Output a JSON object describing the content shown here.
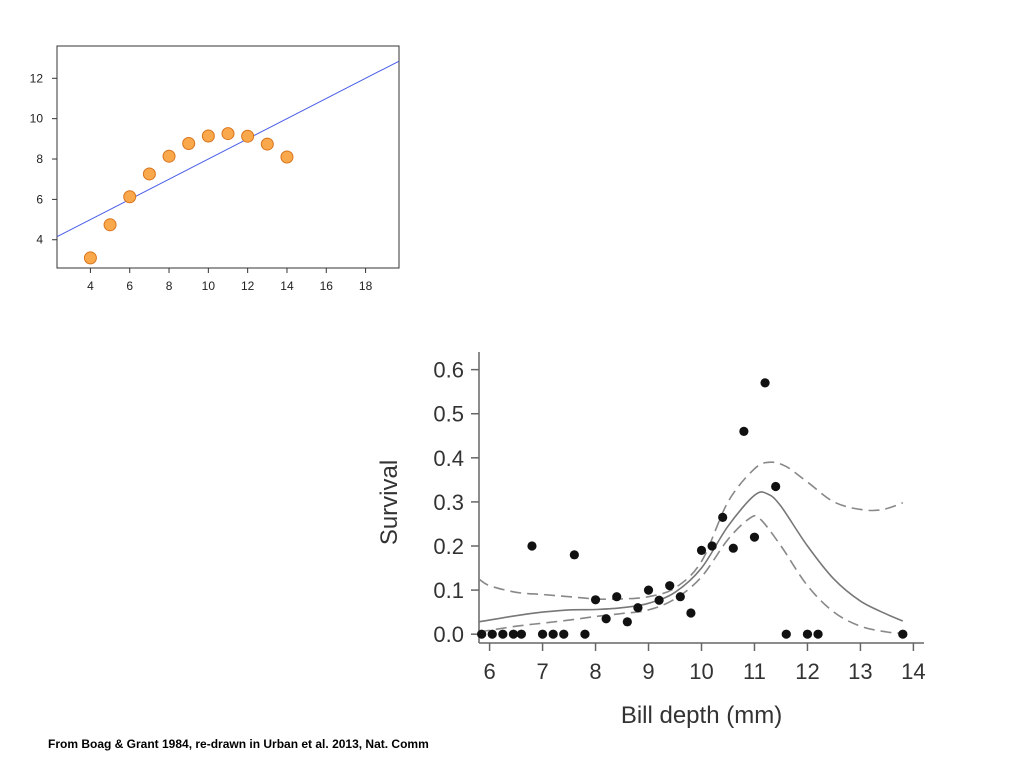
{
  "caption": "From Boag & Grant 1984, re-drawn in Urban et al. 2013, Nat. Comm",
  "chart_data": [
    {
      "type": "scatter",
      "title": "",
      "xlabel": "",
      "ylabel": "",
      "xlim": [
        2.3,
        19.7
      ],
      "ylim": [
        2.6,
        13.6
      ],
      "xticks": [
        4,
        6,
        8,
        10,
        12,
        14,
        16,
        18
      ],
      "yticks": [
        4,
        6,
        8,
        10,
        12
      ],
      "grid": false,
      "points": [
        {
          "x": 4,
          "y": 3.1
        },
        {
          "x": 5,
          "y": 4.74
        },
        {
          "x": 6,
          "y": 6.13
        },
        {
          "x": 7,
          "y": 7.26
        },
        {
          "x": 8,
          "y": 8.14
        },
        {
          "x": 9,
          "y": 8.77
        },
        {
          "x": 10,
          "y": 9.14
        },
        {
          "x": 11,
          "y": 9.26
        },
        {
          "x": 12,
          "y": 9.13
        },
        {
          "x": 13,
          "y": 8.74
        },
        {
          "x": 14,
          "y": 8.1
        }
      ],
      "fit_line": {
        "intercept": 3.0,
        "slope": 0.5
      },
      "colors": {
        "point_fill": "#f9a94b",
        "point_stroke": "#d9731c",
        "line": "#4a5ee8",
        "axis": "#333333"
      }
    },
    {
      "type": "scatter",
      "title": "",
      "xlabel": "Bill depth (mm)",
      "ylabel": "Survival",
      "xlim": [
        5.8,
        14.2
      ],
      "ylim": [
        -0.02,
        0.64
      ],
      "xticks": [
        6,
        7,
        8,
        9,
        10,
        11,
        12,
        13,
        14
      ],
      "yticks": [
        0.0,
        0.1,
        0.2,
        0.3,
        0.4,
        0.5,
        0.6
      ],
      "ytick_labels": [
        "0.0",
        "0.1",
        "0.2",
        "0.3",
        "0.4",
        "0.5",
        "0.6"
      ],
      "grid": false,
      "points": [
        {
          "x": 5.85,
          "y": 0
        },
        {
          "x": 6.05,
          "y": 0
        },
        {
          "x": 6.25,
          "y": 0
        },
        {
          "x": 6.45,
          "y": 0
        },
        {
          "x": 6.6,
          "y": 0
        },
        {
          "x": 6.8,
          "y": 0.2
        },
        {
          "x": 7.0,
          "y": 0
        },
        {
          "x": 7.2,
          "y": 0
        },
        {
          "x": 7.4,
          "y": 0
        },
        {
          "x": 7.6,
          "y": 0.18
        },
        {
          "x": 7.8,
          "y": 0
        },
        {
          "x": 8.0,
          "y": 0.078
        },
        {
          "x": 8.2,
          "y": 0.035
        },
        {
          "x": 8.4,
          "y": 0.085
        },
        {
          "x": 8.6,
          "y": 0.028
        },
        {
          "x": 8.8,
          "y": 0.06
        },
        {
          "x": 9.0,
          "y": 0.1
        },
        {
          "x": 9.2,
          "y": 0.077
        },
        {
          "x": 9.4,
          "y": 0.11
        },
        {
          "x": 9.6,
          "y": 0.085
        },
        {
          "x": 9.8,
          "y": 0.048
        },
        {
          "x": 10.0,
          "y": 0.19
        },
        {
          "x": 10.2,
          "y": 0.2
        },
        {
          "x": 10.4,
          "y": 0.265
        },
        {
          "x": 10.6,
          "y": 0.195
        },
        {
          "x": 10.8,
          "y": 0.46
        },
        {
          "x": 11.0,
          "y": 0.22
        },
        {
          "x": 11.2,
          "y": 0.57
        },
        {
          "x": 11.4,
          "y": 0.335
        },
        {
          "x": 11.6,
          "y": 0
        },
        {
          "x": 12.0,
          "y": 0
        },
        {
          "x": 12.2,
          "y": 0
        },
        {
          "x": 13.8,
          "y": 0
        }
      ],
      "fit_curve": [
        [
          5.8,
          0.028
        ],
        [
          6.5,
          0.042
        ],
        [
          7.0,
          0.05
        ],
        [
          7.5,
          0.055
        ],
        [
          8.0,
          0.056
        ],
        [
          8.5,
          0.06
        ],
        [
          9.0,
          0.07
        ],
        [
          9.5,
          0.095
        ],
        [
          10.0,
          0.15
        ],
        [
          10.5,
          0.245
        ],
        [
          11.0,
          0.315
        ],
        [
          11.25,
          0.318
        ],
        [
          11.5,
          0.29
        ],
        [
          12.0,
          0.2
        ],
        [
          12.5,
          0.125
        ],
        [
          13.0,
          0.075
        ],
        [
          13.5,
          0.045
        ],
        [
          13.8,
          0.03
        ]
      ],
      "upper_band": [
        [
          5.8,
          0.125
        ],
        [
          6.0,
          0.11
        ],
        [
          6.5,
          0.095
        ],
        [
          7.0,
          0.09
        ],
        [
          7.5,
          0.085
        ],
        [
          8.0,
          0.08
        ],
        [
          8.5,
          0.08
        ],
        [
          9.0,
          0.085
        ],
        [
          9.5,
          0.105
        ],
        [
          10.0,
          0.165
        ],
        [
          10.5,
          0.3
        ],
        [
          11.0,
          0.375
        ],
        [
          11.3,
          0.39
        ],
        [
          11.6,
          0.38
        ],
        [
          12.0,
          0.345
        ],
        [
          12.5,
          0.3
        ],
        [
          13.0,
          0.283
        ],
        [
          13.4,
          0.282
        ],
        [
          13.8,
          0.298
        ]
      ],
      "lower_band": [
        [
          5.8,
          0.005
        ],
        [
          6.5,
          0.018
        ],
        [
          7.0,
          0.025
        ],
        [
          7.5,
          0.032
        ],
        [
          8.0,
          0.04
        ],
        [
          8.5,
          0.047
        ],
        [
          9.0,
          0.055
        ],
        [
          9.5,
          0.08
        ],
        [
          10.0,
          0.13
        ],
        [
          10.5,
          0.215
        ],
        [
          10.9,
          0.262
        ],
        [
          11.1,
          0.262
        ],
        [
          11.5,
          0.2
        ],
        [
          12.0,
          0.11
        ],
        [
          12.5,
          0.05
        ],
        [
          13.0,
          0.018
        ],
        [
          13.5,
          0.005
        ],
        [
          13.8,
          0.002
        ]
      ],
      "colors": {
        "point": "#111111",
        "curve": "#777777",
        "band": "#888888",
        "axis": "#666666",
        "text": "#333333"
      }
    }
  ]
}
